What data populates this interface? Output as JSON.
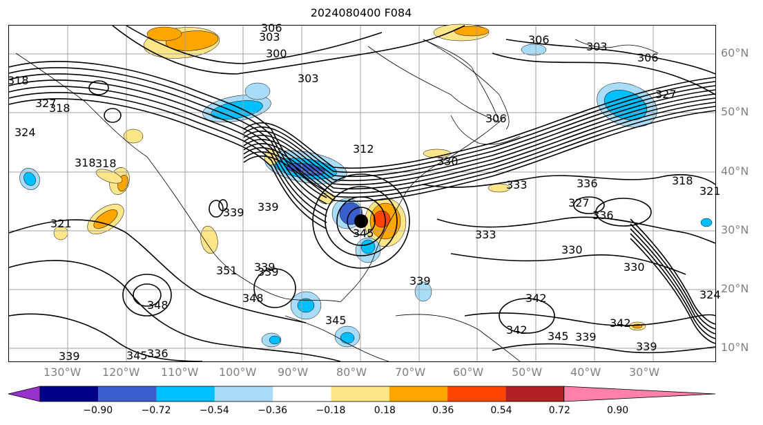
{
  "title": "2024080400 F084",
  "lat_labels": [
    "60°N",
    "50°N",
    "40°N",
    "30°N",
    "20°N",
    "10°N"
  ],
  "lon_labels": [
    "130°W",
    "120°W",
    "110°W",
    "100°W",
    "90°W",
    "80°W",
    "70°W",
    "60°W",
    "50°W",
    "40°W",
    "30°W"
  ],
  "contour_labels": [
    "306",
    "303",
    "300",
    "303",
    "306",
    "303",
    "306",
    "327",
    "318",
    "324",
    "327",
    "318",
    "318",
    "318",
    "312",
    "306",
    "330",
    "339",
    "339",
    "333",
    "336",
    "321",
    "345",
    "351",
    "339",
    "339",
    "333",
    "327",
    "330",
    "336",
    "348",
    "348",
    "345",
    "342",
    "339",
    "342",
    "339",
    "345",
    "336",
    "339",
    "342",
    "345",
    "339",
    "330",
    "324",
    "321",
    "318"
  ],
  "colorbar": {
    "tick_labels": [
      "−0.90",
      "−0.72",
      "−0.54",
      "−0.36",
      "−0.18",
      "0.18",
      "0.36",
      "0.54",
      "0.72",
      "0.90"
    ],
    "colors": [
      "#9932cc",
      "#00008b",
      "#3a5fcd",
      "#00bfff",
      "#a8dcf8",
      "#ffffff",
      "#fde68a",
      "#ffa500",
      "#ff4500",
      "#b22222",
      "#ff80a8"
    ]
  },
  "shading_colors": {
    "neg_light": "#a8dcf8",
    "neg_mid": "#00bfff",
    "neg_strong": "#3a5fcd",
    "pos_light": "#fde68a",
    "pos_mid": "#ffa500",
    "pos_strong": "#ff4500"
  }
}
